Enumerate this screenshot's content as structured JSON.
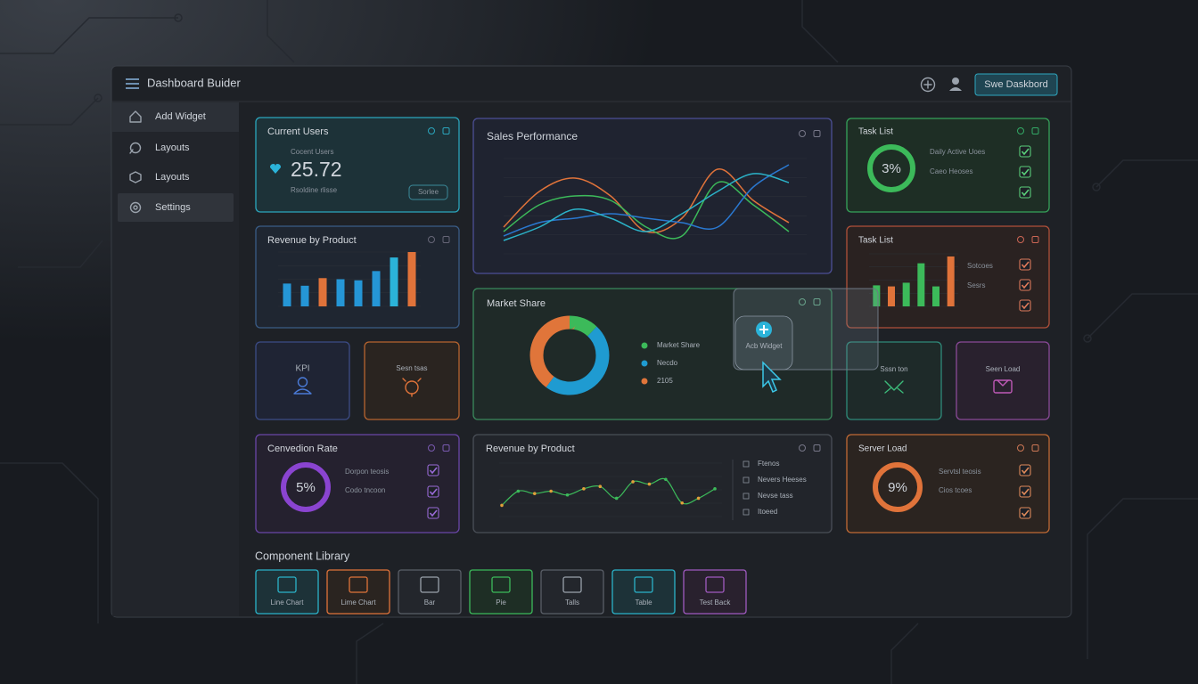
{
  "header": {
    "title": "Dashboard Buider",
    "button": "Swe Daskbord"
  },
  "sidebar": {
    "items": [
      "Add Widget",
      "Layouts",
      "Layouts",
      "Settings"
    ]
  },
  "current_users": {
    "title": "Current Users",
    "caption": "Cocent Users",
    "value": "25.72",
    "note": "Rsoldine rlisse",
    "button": "Sorlee"
  },
  "revenue_bars": {
    "title": "Revenue by Product",
    "ylim": [
      0,
      100
    ],
    "values": [
      42,
      38,
      52,
      50,
      48,
      65,
      90,
      100
    ],
    "colors": [
      "#2596d6",
      "#2596d6",
      "#e0733a",
      "#2596d6",
      "#2596d6",
      "#2596d6",
      "#2bb3d9",
      "#e0733a"
    ]
  },
  "kpi": {
    "label": "KPI"
  },
  "sessions": {
    "label": "Sesn tsas"
  },
  "conversion": {
    "title": "Cenvedion Rate",
    "ring": "5%",
    "lines": [
      "Dorpon teosis",
      "Codo tncoon"
    ]
  },
  "sales": {
    "title": "Sales Performance",
    "ylim": [
      0,
      100
    ],
    "series": [
      {
        "color": "#e0733a",
        "values": [
          20,
          60,
          75,
          55,
          15,
          30,
          85,
          50,
          25
        ]
      },
      {
        "color": "#3cba5a",
        "values": [
          15,
          45,
          55,
          50,
          20,
          10,
          70,
          45,
          15
        ]
      },
      {
        "color": "#2a78d0",
        "values": [
          10,
          25,
          30,
          35,
          30,
          25,
          20,
          65,
          90
        ]
      },
      {
        "color": "#2bb3c9",
        "values": [
          5,
          20,
          40,
          30,
          15,
          35,
          60,
          80,
          70
        ]
      }
    ]
  },
  "market": {
    "title": "Market Share",
    "series": [
      {
        "name": "Market Share",
        "color": "#3cba5a",
        "value": 12
      },
      {
        "name": "Necdo",
        "color": "#1f9bd1",
        "value": 48
      },
      {
        "name": "2105",
        "color": "#e0753a",
        "value": 40
      }
    ]
  },
  "add_widget": {
    "label": "Acb Widget"
  },
  "revenue_line": {
    "title": "Revenue by Product",
    "ylim": [
      0,
      100
    ],
    "values": [
      20,
      50,
      45,
      50,
      42,
      55,
      60,
      35,
      70,
      65,
      75,
      25,
      35,
      55
    ],
    "legend": [
      "Ftenos",
      "Nevers Heeses",
      "Nevse tass",
      "Itoeed"
    ]
  },
  "task1": {
    "title": "Task List",
    "ring": "3%",
    "lines": [
      "Daily Active Uoes",
      "Caeo Heoses"
    ]
  },
  "task2": {
    "title": "Task List",
    "ylim": [
      0,
      100
    ],
    "values": [
      40,
      38,
      45,
      82,
      38,
      95
    ],
    "colors": [
      "#3cba5a",
      "#e0733a",
      "#3cba5a",
      "#3cba5a",
      "#3cba5a",
      "#e0733a"
    ],
    "lines": [
      "Sotcoes",
      "Sesrs"
    ]
  },
  "small": [
    {
      "label": "Sssn ton"
    },
    {
      "label": "Seen Load"
    }
  ],
  "server": {
    "title": "Server Load",
    "ring": "9%",
    "lines": [
      "Servtsl teosis",
      "Cios tcoes"
    ]
  },
  "library": {
    "title": "Component Library",
    "items": [
      "Line Chart",
      "Lime Chart",
      "Bar",
      "Pie",
      "Talls",
      "Table",
      "Test Back"
    ]
  }
}
